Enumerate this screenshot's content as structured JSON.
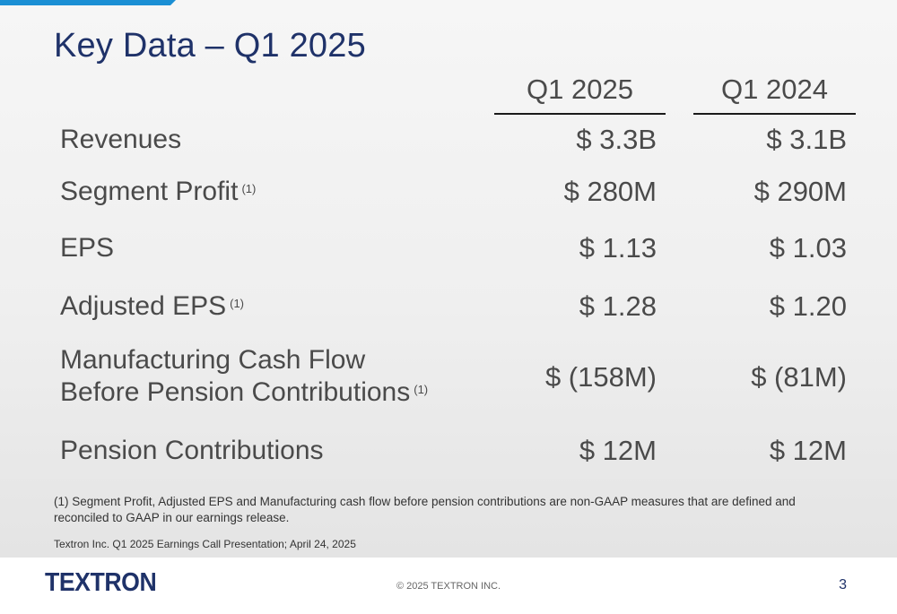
{
  "title": "Key Data – Q1 2025",
  "columns": [
    "Q1 2025",
    "Q1 2024"
  ],
  "rows": [
    {
      "label": "Revenues",
      "note": "",
      "q1_2025": "$ 3.3B",
      "q1_2024": "$ 3.1B"
    },
    {
      "label": "Segment Profit",
      "note": "(1)",
      "q1_2025": "$ 280M",
      "q1_2024": "$ 290M"
    },
    {
      "label": "EPS",
      "note": "",
      "q1_2025": "$ 1.13",
      "q1_2024": "$ 1.03"
    },
    {
      "label": "Adjusted EPS",
      "note": "(1)",
      "q1_2025": "$ 1.28",
      "q1_2024": "$ 1.20"
    },
    {
      "label": "Manufacturing Cash Flow",
      "label_line2": "Before Pension Contributions",
      "note": "(1)",
      "q1_2025": "$ (158M)",
      "q1_2024": "$ (81M)"
    },
    {
      "label": "Pension Contributions",
      "note": "",
      "q1_2025": "$ 12M",
      "q1_2024": "$ 12M"
    }
  ],
  "footnote": "(1) Segment Profit, Adjusted EPS and Manufacturing cash flow before pension contributions are non-GAAP measures that are defined and reconciled to GAAP in our earnings release.",
  "source": "Textron Inc. Q1 2025 Earnings Call Presentation; April 24, 2025",
  "footer": {
    "logo": "TEXTRON",
    "copyright": "© 2025 TEXTRON INC.",
    "page_number": "3"
  },
  "colors": {
    "accent_bar": "#1b8fd4",
    "title": "#1f3269",
    "text": "#4a4a4a"
  }
}
